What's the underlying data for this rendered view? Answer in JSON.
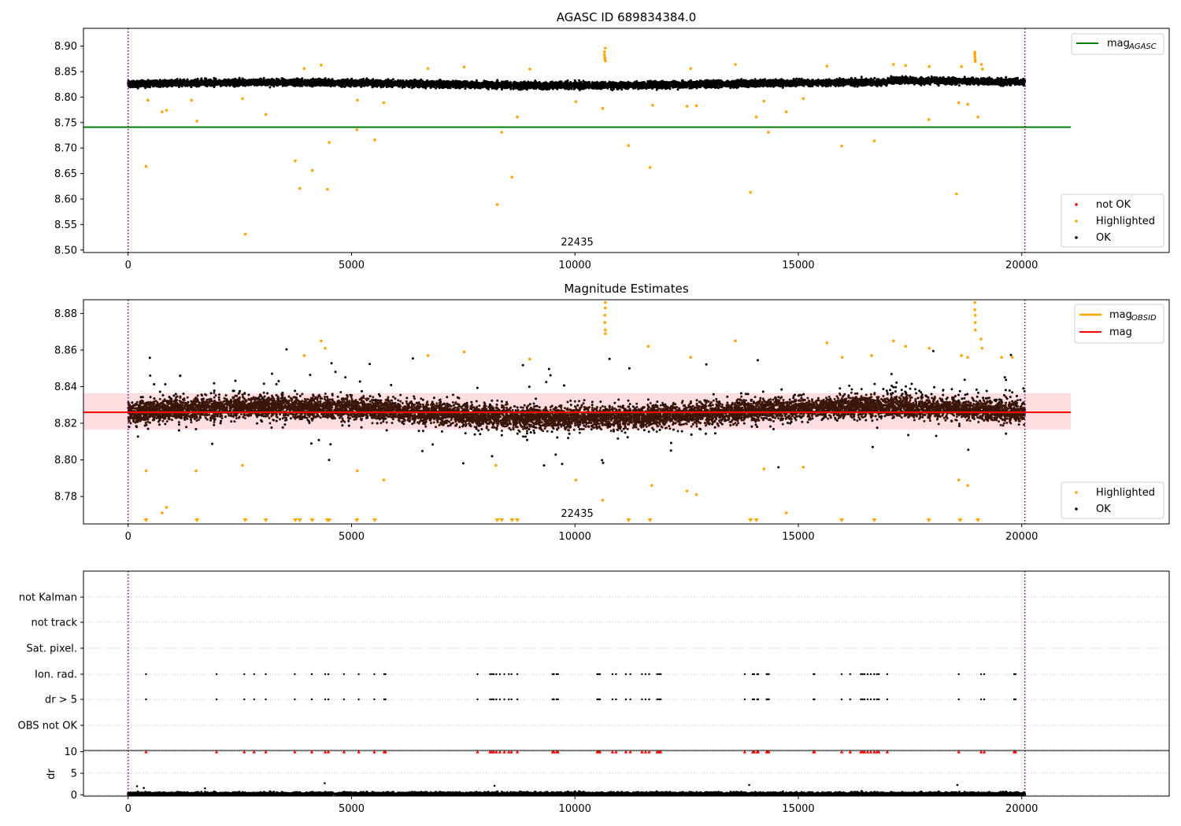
{
  "colors": {
    "ok": "#000000",
    "highlighted": "#FFA500",
    "not_ok": "#FF0000",
    "mag_agasc": "#008000",
    "mag_obsid": "#FFA500",
    "mag": "#FF0000",
    "mag_band": "#FFB6BE",
    "obs_boundary": "#800080"
  },
  "chart_data": [
    {
      "type": "scatter",
      "title": "AGASC ID 689834384.0",
      "xlim": [
        -1000,
        23300
      ],
      "ylim": [
        8.495,
        8.935
      ],
      "xticks": [
        0,
        5000,
        10000,
        15000,
        20000
      ],
      "yticks": [
        8.5,
        8.55,
        8.6,
        8.65,
        8.7,
        8.75,
        8.8,
        8.85,
        8.9
      ],
      "grid": false,
      "legend": {
        "upper_right": [
          {
            "label": "mag",
            "subscript": "AGASC",
            "kind": "line"
          }
        ],
        "lower_right": [
          "not OK",
          "Highlighted",
          "OK"
        ]
      },
      "lines": [
        {
          "name": "mag_AGASC",
          "y": 8.741,
          "x_range": [
            -1000,
            21100
          ]
        }
      ],
      "obs_boundaries": [
        0,
        20070
      ],
      "obsid_labels": [
        {
          "text": "22435",
          "x": 10050
        }
      ],
      "ok_band": {
        "x_range": [
          0,
          20070
        ],
        "center": 8.826,
        "spread": 0.02
      },
      "series": [
        {
          "name": "Highlighted",
          "points": [
            [
              400,
              8.664
            ],
            [
              760,
              8.771
            ],
            [
              860,
              8.774
            ],
            [
              1540,
              8.753
            ],
            [
              2620,
              8.531
            ],
            [
              3080,
              8.766
            ],
            [
              3740,
              8.675
            ],
            [
              3840,
              8.621
            ],
            [
              4120,
              8.656
            ],
            [
              4460,
              8.619
            ],
            [
              4500,
              8.711
            ],
            [
              5120,
              8.736
            ],
            [
              5520,
              8.716
            ],
            [
              8260,
              8.589
            ],
            [
              8360,
              8.731
            ],
            [
              8590,
              8.643
            ],
            [
              8710,
              8.761
            ],
            [
              10620,
              8.778
            ],
            [
              11200,
              8.705
            ],
            [
              11680,
              8.662
            ],
            [
              11740,
              8.784
            ],
            [
              12510,
              8.782
            ],
            [
              12720,
              8.783
            ],
            [
              13930,
              8.613
            ],
            [
              14060,
              8.761
            ],
            [
              14330,
              8.731
            ],
            [
              14730,
              8.771
            ],
            [
              15970,
              8.704
            ],
            [
              16700,
              8.714
            ],
            [
              17920,
              8.756
            ],
            [
              18540,
              8.61
            ],
            [
              19020,
              8.761
            ],
            [
              10680,
              8.896
            ],
            [
              10660,
              8.889
            ],
            [
              10660,
              8.883
            ],
            [
              10670,
              8.878
            ],
            [
              10670,
              8.874
            ],
            [
              10680,
              8.871
            ],
            [
              18950,
              8.888
            ],
            [
              18950,
              8.884
            ],
            [
              18950,
              8.879
            ],
            [
              18960,
              8.874
            ],
            [
              18960,
              8.87
            ],
            [
              19100,
              8.864
            ],
            [
              19120,
              8.855
            ],
            [
              3940,
              8.856
            ],
            [
              4320,
              8.863
            ],
            [
              6710,
              8.856
            ],
            [
              7520,
              8.859
            ],
            [
              8990,
              8.855
            ],
            [
              12590,
              8.856
            ],
            [
              13590,
              8.864
            ],
            [
              15640,
              8.861
            ],
            [
              17130,
              8.864
            ],
            [
              17400,
              8.862
            ],
            [
              17930,
              8.86
            ],
            [
              18650,
              8.86
            ],
            [
              440,
              8.794
            ],
            [
              1420,
              8.794
            ],
            [
              2560,
              8.797
            ],
            [
              5130,
              8.794
            ],
            [
              5720,
              8.789
            ],
            [
              10020,
              8.791
            ],
            [
              14230,
              8.792
            ],
            [
              15110,
              8.797
            ],
            [
              18590,
              8.789
            ],
            [
              18790,
              8.786
            ]
          ]
        },
        {
          "name": "not OK",
          "points": []
        }
      ]
    },
    {
      "type": "scatter",
      "title": "Magnitude Estimates",
      "xlim": [
        -1000,
        23300
      ],
      "ylim": [
        8.765,
        8.8875
      ],
      "xticks": [
        0,
        5000,
        10000,
        15000,
        20000
      ],
      "yticks": [
        8.78,
        8.8,
        8.82,
        8.84,
        8.86,
        8.88
      ],
      "grid": false,
      "legend": {
        "upper_right": [
          {
            "label": "mag",
            "subscript": "OBSID",
            "kind": "line"
          },
          {
            "label": "mag",
            "kind": "line"
          }
        ],
        "lower_right": [
          "Highlighted",
          "OK"
        ]
      },
      "lines": [
        {
          "name": "mag_OBSID",
          "y": 8.826,
          "x_range": [
            0,
            20070
          ]
        },
        {
          "name": "mag",
          "y": 8.826,
          "x_range": [
            -1000,
            21100
          ]
        }
      ],
      "mag_band": [
        8.8165,
        8.8365
      ],
      "obs_boundaries": [
        0,
        20070
      ],
      "obsid_labels": [
        {
          "text": "22435",
          "x": 10050
        }
      ],
      "ok_band": {
        "x_range": [
          0,
          20070
        ],
        "center": 8.826,
        "spread": 0.03
      },
      "series": [
        {
          "name": "Highlighted",
          "points": [
            [
              400,
              8.794
            ],
            [
              860,
              8.774
            ],
            [
              760,
              8.771
            ],
            [
              1520,
              8.794
            ],
            [
              2560,
              8.797
            ],
            [
              5130,
              8.794
            ],
            [
              5720,
              8.789
            ],
            [
              8230,
              8.797
            ],
            [
              10020,
              8.789
            ],
            [
              10620,
              8.778
            ],
            [
              11720,
              8.786
            ],
            [
              12510,
              8.783
            ],
            [
              12720,
              8.781
            ],
            [
              14230,
              8.795
            ],
            [
              14730,
              8.771
            ],
            [
              15110,
              8.796
            ],
            [
              18590,
              8.789
            ],
            [
              18790,
              8.786
            ],
            [
              10680,
              8.886
            ],
            [
              10680,
              8.883
            ],
            [
              10670,
              8.879
            ],
            [
              10670,
              8.875
            ],
            [
              10680,
              8.871
            ],
            [
              10680,
              8.869
            ],
            [
              18950,
              8.886
            ],
            [
              18950,
              8.882
            ],
            [
              18960,
              8.879
            ],
            [
              18960,
              8.875
            ],
            [
              18960,
              8.871
            ],
            [
              19090,
              8.866
            ],
            [
              19110,
              8.861
            ],
            [
              3940,
              8.857
            ],
            [
              4320,
              8.865
            ],
            [
              4410,
              8.861
            ],
            [
              6710,
              8.857
            ],
            [
              7520,
              8.859
            ],
            [
              8990,
              8.855
            ],
            [
              11640,
              8.862
            ],
            [
              12590,
              8.856
            ],
            [
              13590,
              8.865
            ],
            [
              15640,
              8.864
            ],
            [
              15980,
              8.856
            ],
            [
              16640,
              8.857
            ],
            [
              17130,
              8.865
            ],
            [
              17400,
              8.862
            ],
            [
              17930,
              8.861
            ],
            [
              18650,
              8.857
            ],
            [
              18790,
              8.856
            ],
            [
              19550,
              8.856
            ],
            [
              19790,
              8.856
            ]
          ]
        },
        {
          "name": "Highlighted (clipped below axis)",
          "x": [
            400,
            1540,
            2620,
            3080,
            3740,
            3840,
            4120,
            4460,
            4500,
            5120,
            5520,
            8260,
            8360,
            8590,
            8710,
            11200,
            11680,
            13930,
            14060,
            15970,
            16700,
            17920,
            18620,
            19020
          ]
        }
      ]
    },
    {
      "type": "scatter",
      "title": "",
      "xlim": [
        -1000,
        23300
      ],
      "categories": [
        "not Kalman",
        "not track",
        "Sat. pixel.",
        "Ion. rad.",
        "dr > 5",
        "OBS not OK"
      ],
      "grid": true,
      "flag_x": [
        400,
        1980,
        2600,
        2820,
        3080,
        3730,
        4110,
        4410,
        4480,
        4830,
        5160,
        5510,
        5730,
        5760,
        7820,
        8100,
        8140,
        8180,
        8240,
        8320,
        8420,
        8520,
        8580,
        8710,
        9500,
        9530,
        9590,
        9620,
        10500,
        10530,
        10560,
        10840,
        10920,
        11140,
        11240,
        11500,
        11580,
        11660,
        11840,
        11880,
        11920,
        13800,
        13980,
        14010,
        14080,
        14100,
        14290,
        14310,
        14340,
        15340,
        15360,
        15970,
        16160,
        16400,
        16440,
        16480,
        16550,
        16620,
        16700,
        16760,
        16800,
        16990,
        18590,
        19090,
        19160,
        19830,
        19860
      ],
      "flags": {
        "Ion. rad.": "flag_x",
        "dr > 5": "flag_x"
      }
    },
    {
      "type": "scatter",
      "title": "",
      "ylabel": "dr",
      "xlim": [
        -1000,
        23300
      ],
      "ylim": [
        -0.3,
        10.3
      ],
      "xticks": [
        0,
        5000,
        10000,
        15000,
        20000
      ],
      "yticks": [
        0,
        5,
        10
      ],
      "grid": true,
      "dr_clip_markers_y": 10,
      "dr_clip_markers_x": "flag_x",
      "dr_outliers": [
        [
          200,
          2.0
        ],
        [
          4400,
          2.7
        ],
        [
          8200,
          2.1
        ],
        [
          13900,
          2.3
        ],
        [
          18560,
          2.3
        ],
        [
          1720,
          1.5
        ],
        [
          350,
          1.6
        ]
      ],
      "dr_typical_range": [
        0,
        1.3
      ]
    }
  ]
}
